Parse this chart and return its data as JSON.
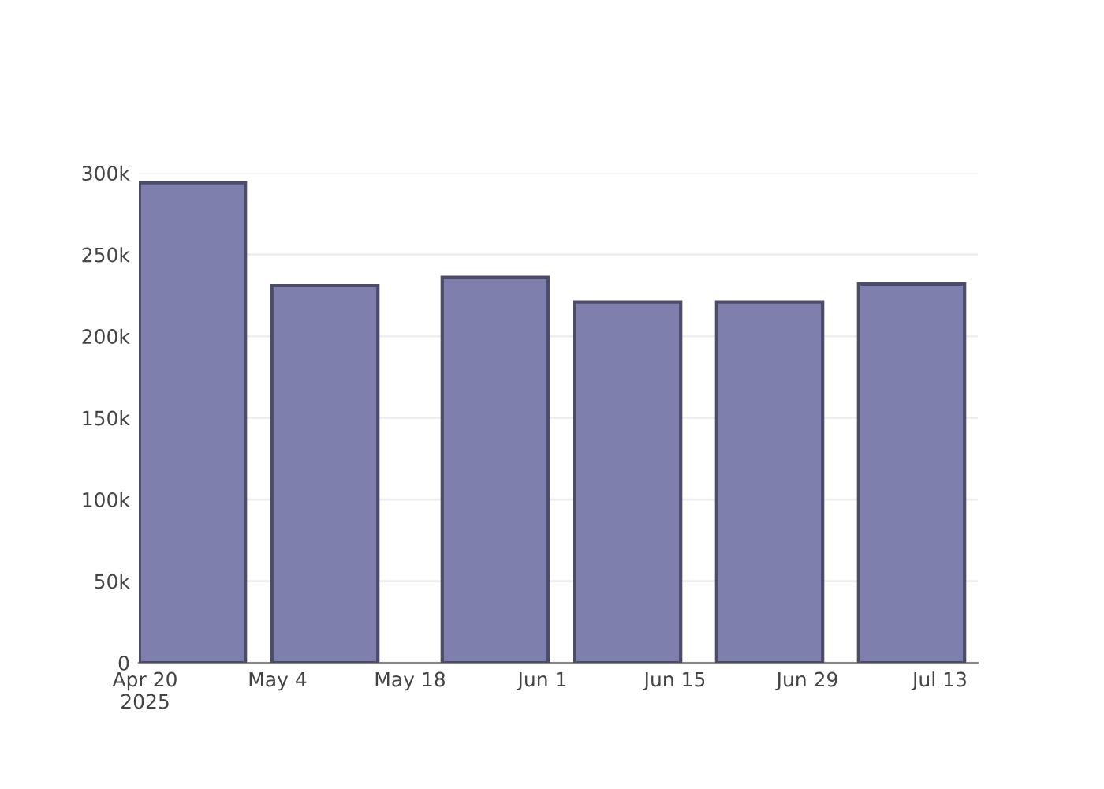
{
  "chart_data": {
    "type": "bar",
    "x": [
      "2025-04-25",
      "2025-05-09",
      "2025-05-27",
      "2025-06-10",
      "2025-06-25",
      "2025-07-10"
    ],
    "series": [
      {
        "color": "#7f7fae",
        "values": [
          294000,
          231000,
          236000,
          221000,
          221000,
          232000
        ]
      }
    ],
    "xlim": [
      "2025-04-19T08:00",
      "2025-07-17"
    ],
    "xticks": [
      {
        "value": "2025-04-20",
        "label": "Apr 20\n2025"
      },
      {
        "value": "2025-05-04",
        "label": "May 4"
      },
      {
        "value": "2025-05-18",
        "label": "May 18"
      },
      {
        "value": "2025-06-01",
        "label": "Jun 1"
      },
      {
        "value": "2025-06-15",
        "label": "Jun 15"
      },
      {
        "value": "2025-06-29",
        "label": "Jun 29"
      },
      {
        "value": "2025-07-13",
        "label": "Jul 13"
      }
    ],
    "ylim": [
      0,
      300000
    ],
    "yticks": [
      {
        "value": 0,
        "label": "0"
      },
      {
        "value": 50000,
        "label": "50k"
      },
      {
        "value": 100000,
        "label": "100k"
      },
      {
        "value": 150000,
        "label": "150k"
      },
      {
        "value": 200000,
        "label": "200k"
      },
      {
        "value": 250000,
        "label": "250k"
      },
      {
        "value": 300000,
        "label": "300k"
      }
    ],
    "grid": "y"
  }
}
